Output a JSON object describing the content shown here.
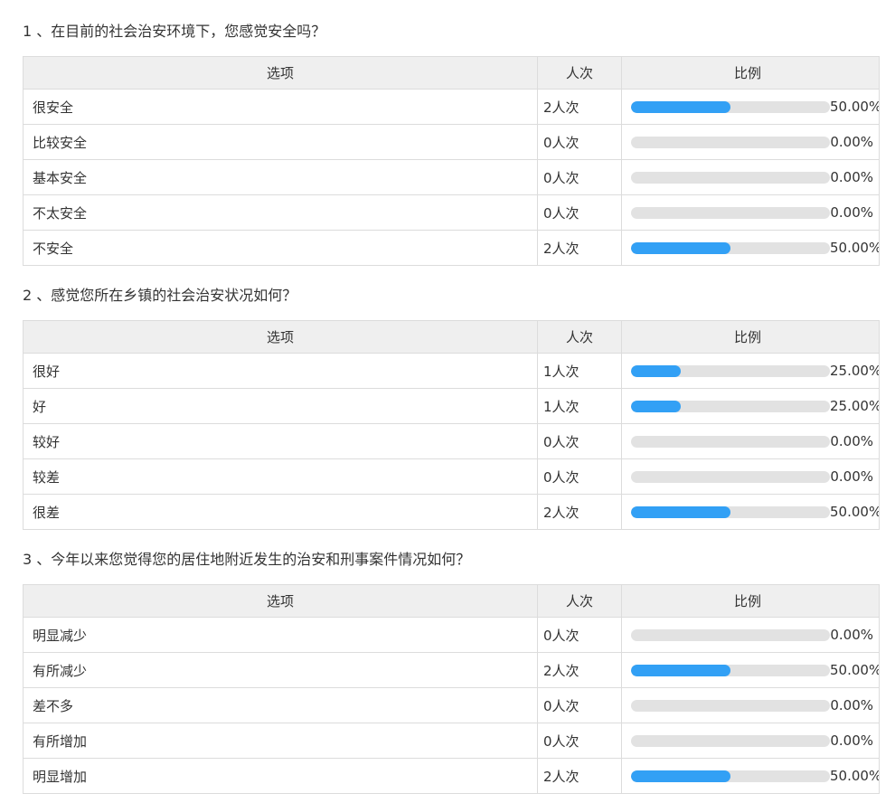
{
  "colors": {
    "bar_fill": "#32a0f5",
    "bar_track": "#e2e2e2",
    "header_bg": "#efefef",
    "border": "#dcdcdc",
    "text": "#333333"
  },
  "table_headers": {
    "option": "选项",
    "count": "人次",
    "ratio": "比例"
  },
  "questions": [
    {
      "title": "1 、在目前的社会治安环境下，您感觉安全吗？",
      "rows": [
        {
          "option": "很安全",
          "count": "2人次",
          "percent_label": "50.00%",
          "percent_value": 50
        },
        {
          "option": "比较安全",
          "count": "0人次",
          "percent_label": "0.00%",
          "percent_value": 0
        },
        {
          "option": "基本安全",
          "count": "0人次",
          "percent_label": "0.00%",
          "percent_value": 0
        },
        {
          "option": "不太安全",
          "count": "0人次",
          "percent_label": "0.00%",
          "percent_value": 0
        },
        {
          "option": "不安全",
          "count": "2人次",
          "percent_label": "50.00%",
          "percent_value": 50
        }
      ]
    },
    {
      "title": "2 、感觉您所在乡镇的社会治安状况如何？",
      "rows": [
        {
          "option": "很好",
          "count": "1人次",
          "percent_label": "25.00%",
          "percent_value": 25
        },
        {
          "option": "好",
          "count": "1人次",
          "percent_label": "25.00%",
          "percent_value": 25
        },
        {
          "option": "较好",
          "count": "0人次",
          "percent_label": "0.00%",
          "percent_value": 0
        },
        {
          "option": "较差",
          "count": "0人次",
          "percent_label": "0.00%",
          "percent_value": 0
        },
        {
          "option": "很差",
          "count": "2人次",
          "percent_label": "50.00%",
          "percent_value": 50
        }
      ]
    },
    {
      "title": "3 、今年以来您觉得您的居住地附近发生的治安和刑事案件情况如何？",
      "rows": [
        {
          "option": "明显减少",
          "count": "0人次",
          "percent_label": "0.00%",
          "percent_value": 0
        },
        {
          "option": "有所减少",
          "count": "2人次",
          "percent_label": "50.00%",
          "percent_value": 50
        },
        {
          "option": "差不多",
          "count": "0人次",
          "percent_label": "0.00%",
          "percent_value": 0
        },
        {
          "option": "有所增加",
          "count": "0人次",
          "percent_label": "0.00%",
          "percent_value": 0
        },
        {
          "option": "明显增加",
          "count": "2人次",
          "percent_label": "50.00%",
          "percent_value": 50
        }
      ]
    }
  ],
  "chart_data": [
    {
      "type": "bar",
      "title": "1 、在目前的社会治安环境下，您感觉安全吗？",
      "categories": [
        "很安全",
        "比较安全",
        "基本安全",
        "不太安全",
        "不安全"
      ],
      "series": [
        {
          "name": "人次",
          "values": [
            2,
            0,
            0,
            0,
            2
          ]
        },
        {
          "name": "比例(%)",
          "values": [
            50,
            0,
            0,
            0,
            50
          ]
        }
      ],
      "xlabel": "",
      "ylabel": "比例",
      "xlim": [
        0,
        100
      ],
      "legend": "none",
      "grid": false
    },
    {
      "type": "bar",
      "title": "2 、感觉您所在乡镇的社会治安状况如何？",
      "categories": [
        "很好",
        "好",
        "较好",
        "较差",
        "很差"
      ],
      "series": [
        {
          "name": "人次",
          "values": [
            1,
            1,
            0,
            0,
            2
          ]
        },
        {
          "name": "比例(%)",
          "values": [
            25,
            25,
            0,
            0,
            50
          ]
        }
      ],
      "xlabel": "",
      "ylabel": "比例",
      "xlim": [
        0,
        100
      ],
      "legend": "none",
      "grid": false
    },
    {
      "type": "bar",
      "title": "3 、今年以来您觉得您的居住地附近发生的治安和刑事案件情况如何？",
      "categories": [
        "明显减少",
        "有所减少",
        "差不多",
        "有所增加",
        "明显增加"
      ],
      "series": [
        {
          "name": "人次",
          "values": [
            0,
            2,
            0,
            0,
            2
          ]
        },
        {
          "name": "比例(%)",
          "values": [
            0,
            50,
            0,
            0,
            50
          ]
        }
      ],
      "xlabel": "",
      "ylabel": "比例",
      "xlim": [
        0,
        100
      ],
      "legend": "none",
      "grid": false
    }
  ]
}
